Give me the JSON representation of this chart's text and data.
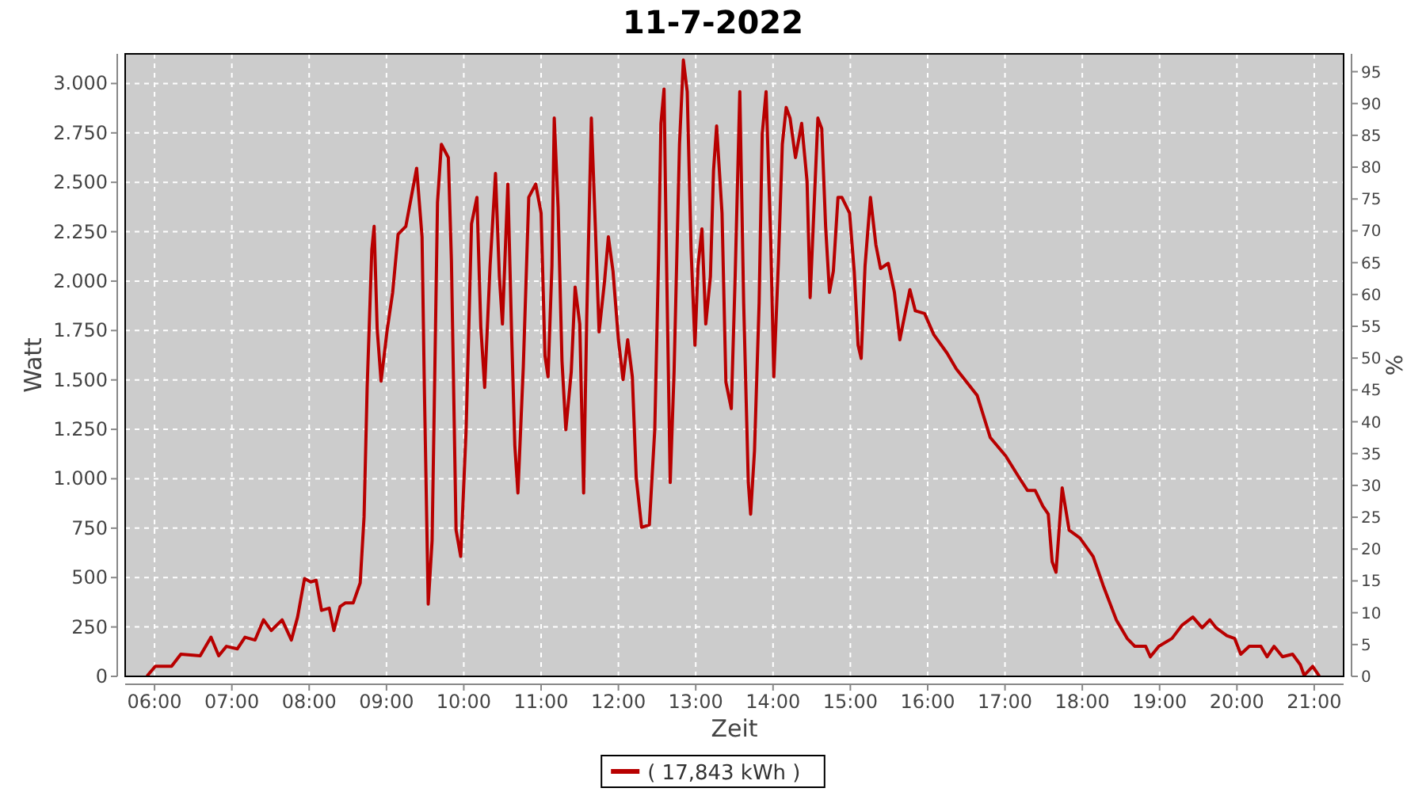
{
  "chart_data": {
    "type": "line",
    "title": "11-7-2022",
    "xlabel": "Zeit",
    "ylabel": "Watt",
    "y2label": "%",
    "xlim": [
      5.62,
      21.38
    ],
    "xticks": [
      {
        "value": 6,
        "label": "06:00"
      },
      {
        "value": 7,
        "label": "07:00"
      },
      {
        "value": 8,
        "label": "08:00"
      },
      {
        "value": 9,
        "label": "09:00"
      },
      {
        "value": 10,
        "label": "10:00"
      },
      {
        "value": 11,
        "label": "11:00"
      },
      {
        "value": 12,
        "label": "12:00"
      },
      {
        "value": 13,
        "label": "13:00"
      },
      {
        "value": 14,
        "label": "14:00"
      },
      {
        "value": 15,
        "label": "15:00"
      },
      {
        "value": 16,
        "label": "16:00"
      },
      {
        "value": 17,
        "label": "17:00"
      },
      {
        "value": 18,
        "label": "18:00"
      },
      {
        "value": 19,
        "label": "19:00"
      },
      {
        "value": 20,
        "label": "20:00"
      },
      {
        "value": 21,
        "label": "21:00"
      }
    ],
    "ylim": [
      0,
      3150
    ],
    "yticks": [
      0,
      250,
      500,
      750,
      {
        "value": 1000,
        "label": "1.000"
      },
      {
        "value": 1250,
        "label": "1.250"
      },
      {
        "value": 1500,
        "label": "1.500"
      },
      {
        "value": 1750,
        "label": "1.750"
      },
      {
        "value": 2000,
        "label": "2.000"
      },
      {
        "value": 2250,
        "label": "2.250"
      },
      {
        "value": 2500,
        "label": "2.500"
      },
      {
        "value": 2750,
        "label": "2.750"
      },
      {
        "value": 3000,
        "label": "3.000"
      }
    ],
    "y2lim": [
      0,
      97.8
    ],
    "y2ticks": [
      0,
      5,
      10,
      15,
      20,
      25,
      30,
      35,
      40,
      45,
      50,
      55,
      60,
      65,
      70,
      75,
      80,
      85,
      90,
      95
    ],
    "grid": true,
    "legend": "bottom",
    "marker": "none",
    "line_style": "solid",
    "series": [
      {
        "name": "( 17,843 kWh )",
        "color": "#b80000",
        "x": [
          5.91,
          6.01,
          6.22,
          6.34,
          6.59,
          6.73,
          6.83,
          6.93,
          7.07,
          7.17,
          7.3,
          7.41,
          7.51,
          7.65,
          7.77,
          7.85,
          7.94,
          8.02,
          8.09,
          8.16,
          8.26,
          8.32,
          8.4,
          8.47,
          8.57,
          8.66,
          8.71,
          8.75,
          8.81,
          8.84,
          8.88,
          8.93,
          9.01,
          9.08,
          9.15,
          9.25,
          9.39,
          9.46,
          9.49,
          9.54,
          9.59,
          9.66,
          9.71,
          9.8,
          9.84,
          9.9,
          9.96,
          10.03,
          10.1,
          10.17,
          10.22,
          10.27,
          10.34,
          10.41,
          10.46,
          10.5,
          10.57,
          10.62,
          10.66,
          10.7,
          10.77,
          10.84,
          10.93,
          11.0,
          11.05,
          11.09,
          11.14,
          11.17,
          11.22,
          11.27,
          11.32,
          11.39,
          11.44,
          11.5,
          11.55,
          11.59,
          11.65,
          11.7,
          11.75,
          11.82,
          11.87,
          11.93,
          12.0,
          12.06,
          12.12,
          12.18,
          12.23,
          12.3,
          12.4,
          12.47,
          12.52,
          12.55,
          12.59,
          12.62,
          12.67,
          12.72,
          12.79,
          12.84,
          12.89,
          12.94,
          12.99,
          13.03,
          13.08,
          13.13,
          13.19,
          13.23,
          13.27,
          13.34,
          13.39,
          13.46,
          13.51,
          13.57,
          13.62,
          13.68,
          13.71,
          13.76,
          13.82,
          13.86,
          13.91,
          13.97,
          14.01,
          14.07,
          14.12,
          14.17,
          14.22,
          14.29,
          14.37,
          14.44,
          14.48,
          14.53,
          14.58,
          14.63,
          14.68,
          14.73,
          14.78,
          14.84,
          14.89,
          14.99,
          15.05,
          15.1,
          15.14,
          15.19,
          15.26,
          15.33,
          15.39,
          15.49,
          15.57,
          15.64,
          15.68,
          15.77,
          15.84,
          15.96,
          16.08,
          16.25,
          16.37,
          16.64,
          16.81,
          17.01,
          17.18,
          17.29,
          17.39,
          17.49,
          17.56,
          17.61,
          17.66,
          17.74,
          17.83,
          17.97,
          18.14,
          18.27,
          18.44,
          18.58,
          18.68,
          18.82,
          18.88,
          18.99,
          19.16,
          19.29,
          19.43,
          19.55,
          19.65,
          19.73,
          19.87,
          19.97,
          20.05,
          20.16,
          20.31,
          20.39,
          20.48,
          20.59,
          20.72,
          20.82,
          20.87,
          20.98,
          21.06
        ],
        "values": [
          5,
          51,
          51,
          112,
          104,
          198,
          104,
          152,
          139,
          198,
          184,
          286,
          232,
          286,
          184,
          300,
          495,
          478,
          486,
          334,
          345,
          232,
          353,
          372,
          372,
          473,
          807,
          1462,
          2157,
          2277,
          1756,
          1494,
          1756,
          1943,
          2237,
          2277,
          2571,
          2224,
          1462,
          366,
          687,
          2398,
          2692,
          2625,
          2104,
          740,
          607,
          1248,
          2290,
          2424,
          1769,
          1462,
          2077,
          2545,
          2024,
          1783,
          2491,
          1716,
          1168,
          928,
          1569,
          2424,
          2491,
          2344,
          1622,
          1516,
          2077,
          2825,
          2371,
          1596,
          1248,
          1542,
          1970,
          1783,
          928,
          1810,
          2825,
          2290,
          1743,
          1997,
          2224,
          2050,
          1703,
          1502,
          1703,
          1516,
          1008,
          754,
          767,
          1248,
          2131,
          2798,
          2972,
          2157,
          981,
          1542,
          2692,
          3119,
          2959,
          2157,
          1676,
          2077,
          2264,
          1783,
          2024,
          2558,
          2785,
          2344,
          1489,
          1355,
          2024,
          2959,
          1890,
          981,
          821,
          1141,
          1890,
          2745,
          2959,
          2210,
          1516,
          2104,
          2692,
          2879,
          2825,
          2625,
          2798,
          2505,
          1917,
          2371,
          2825,
          2772,
          2277,
          1943,
          2050,
          2424,
          2424,
          2344,
          2050,
          1676,
          1609,
          2077,
          2424,
          2184,
          2064,
          2090,
          1943,
          1703,
          1783,
          1957,
          1850,
          1836,
          1729,
          1636,
          1556,
          1422,
          1208,
          1115,
          1008,
          941,
          941,
          861,
          821,
          580,
          527,
          954,
          740,
          700,
          607,
          460,
          286,
          192,
          152,
          152,
          99,
          152,
          192,
          259,
          300,
          246,
          286,
          246,
          206,
          192,
          112,
          152,
          152,
          99,
          152,
          99,
          112,
          59,
          5,
          51,
          5
        ]
      }
    ]
  }
}
